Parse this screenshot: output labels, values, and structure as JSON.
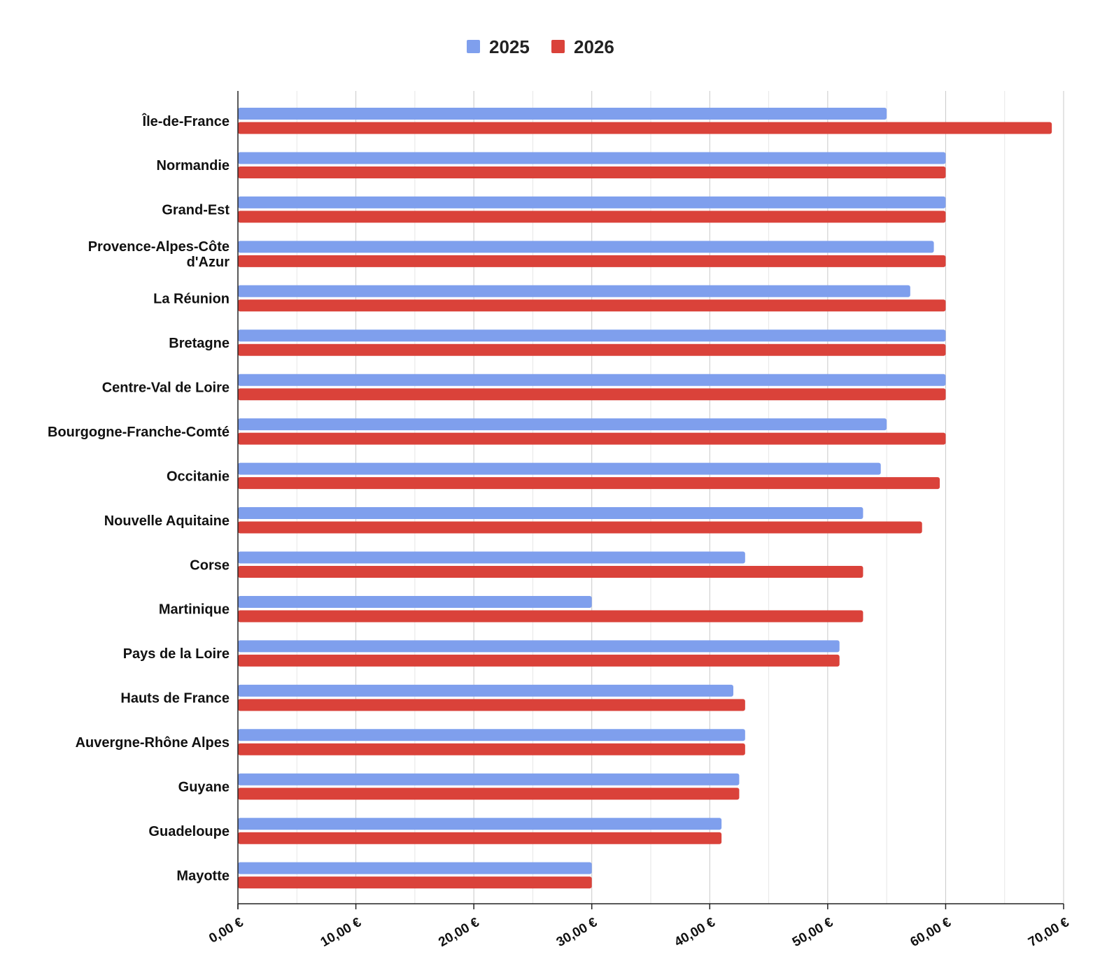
{
  "chart_data": {
    "type": "bar",
    "orientation": "horizontal",
    "categories": [
      "Île-de-France",
      "Normandie",
      "Grand-Est",
      "Provence-Alpes-Côte d'Azur",
      "La Réunion",
      "Bretagne",
      "Centre-Val de Loire",
      "Bourgogne-Franche-Comté",
      "Occitanie",
      "Nouvelle Aquitaine",
      "Corse",
      "Martinique",
      "Pays de la Loire",
      "Hauts de France",
      "Auvergne-Rhône Alpes",
      "Guyane",
      "Guadeloupe",
      "Mayotte"
    ],
    "category_lines": [
      [
        "Île-de-France"
      ],
      [
        "Normandie"
      ],
      [
        "Grand-Est"
      ],
      [
        "Provence-Alpes-Côte",
        "d'Azur"
      ],
      [
        "La Réunion"
      ],
      [
        "Bretagne"
      ],
      [
        "Centre-Val de Loire"
      ],
      [
        "Bourgogne-Franche-Comté"
      ],
      [
        "Occitanie"
      ],
      [
        "Nouvelle Aquitaine"
      ],
      [
        "Corse"
      ],
      [
        "Martinique"
      ],
      [
        "Pays de la Loire"
      ],
      [
        "Hauts de France"
      ],
      [
        "Auvergne-Rhône Alpes"
      ],
      [
        "Guyane"
      ],
      [
        "Guadeloupe"
      ],
      [
        "Mayotte"
      ]
    ],
    "series": [
      {
        "name": "2025",
        "color": "#7f9fed",
        "values": [
          55,
          60,
          60,
          59,
          57,
          60,
          60,
          55,
          54.5,
          53,
          43,
          30,
          51,
          42,
          43,
          42.5,
          41,
          30
        ]
      },
      {
        "name": "2026",
        "color": "#da423a",
        "values": [
          69,
          60,
          60,
          60,
          60,
          60,
          60,
          60,
          59.5,
          58,
          53,
          53,
          51,
          43,
          43,
          42.5,
          41,
          30
        ]
      }
    ],
    "xlim": [
      0,
      70
    ],
    "xticks": [
      0,
      10,
      20,
      30,
      40,
      50,
      60,
      70
    ],
    "xtick_labels": [
      "0,00 €",
      "10,00 €",
      "20,00 €",
      "30,00 €",
      "40,00 €",
      "50,00 €",
      "60,00 €",
      "70,00 €"
    ],
    "title": "",
    "xlabel": "",
    "ylabel": "",
    "grid": true,
    "legend_position": "top-center"
  }
}
